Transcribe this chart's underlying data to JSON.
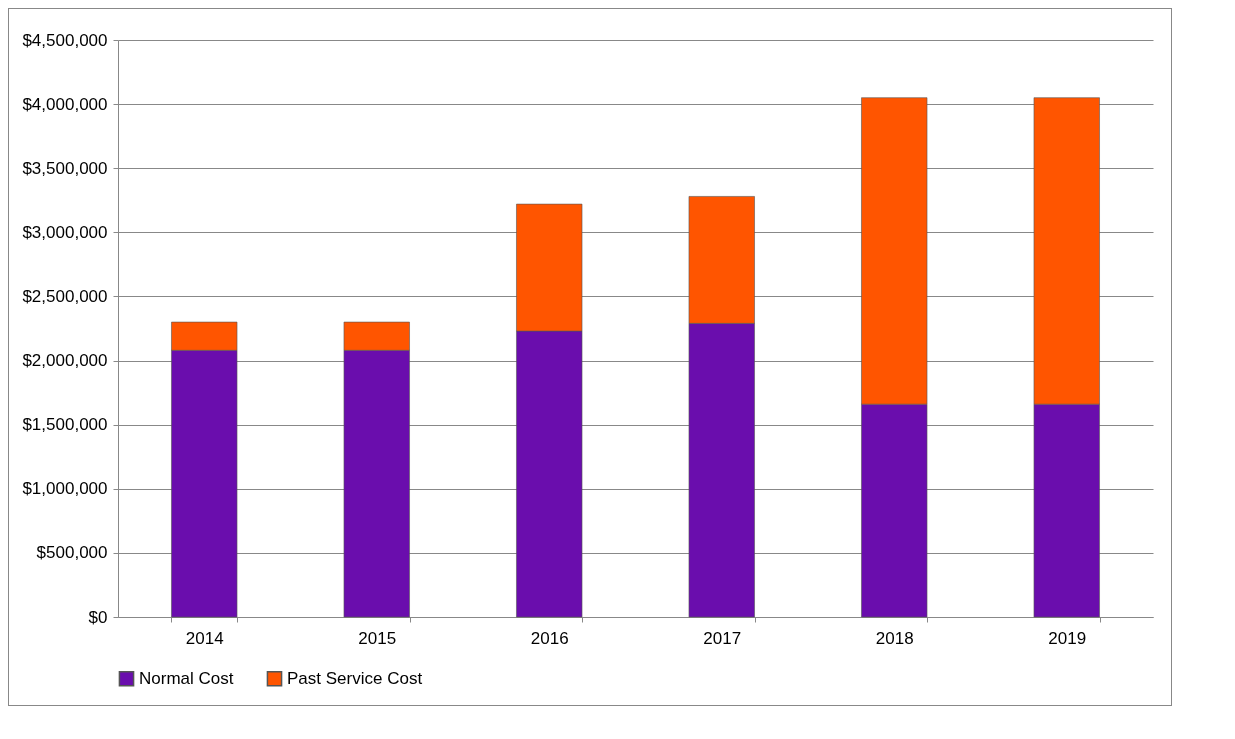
{
  "chart_data": {
    "type": "bar",
    "stacked": true,
    "categories": [
      "2014",
      "2015",
      "2016",
      "2017",
      "2018",
      "2019"
    ],
    "series": [
      {
        "name": "Normal Cost",
        "color": "#6a0dad",
        "values": [
          2080000,
          2080000,
          2230000,
          2290000,
          1660000,
          1660000
        ]
      },
      {
        "name": "Past Service Cost",
        "color": "#ff5500",
        "values": [
          220000,
          220000,
          990000,
          990000,
          2390000,
          2390000
        ]
      }
    ],
    "ylim": [
      0,
      4500000
    ],
    "yticks": [
      {
        "value": 0,
        "label": "$0"
      },
      {
        "value": 500000,
        "label": "$500,000"
      },
      {
        "value": 1000000,
        "label": "$1,000,000"
      },
      {
        "value": 1500000,
        "label": "$1,500,000"
      },
      {
        "value": 2000000,
        "label": "$2,000,000"
      },
      {
        "value": 2500000,
        "label": "$2,500,000"
      },
      {
        "value": 3000000,
        "label": "$3,000,000"
      },
      {
        "value": 3500000,
        "label": "$3,500,000"
      },
      {
        "value": 4000000,
        "label": "$4,000,000"
      },
      {
        "value": 4500000,
        "label": "$4,500,000"
      }
    ],
    "grid": "y",
    "legend": "bottom"
  }
}
